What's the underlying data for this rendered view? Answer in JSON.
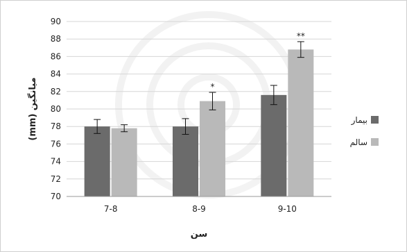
{
  "chart_data": {
    "type": "bar",
    "categories": [
      "7-8",
      "8-9",
      "9-10"
    ],
    "series": [
      {
        "name": "بیمار",
        "color": "#6b6b6b",
        "values": [
          78.0,
          78.0,
          81.6
        ],
        "errors": [
          0.8,
          0.9,
          1.1
        ]
      },
      {
        "name": "سالم",
        "color": "#b9b9b9",
        "values": [
          77.8,
          80.9,
          86.8
        ],
        "errors": [
          0.4,
          1.0,
          0.9
        ]
      }
    ],
    "significance": [
      "",
      "*",
      "**"
    ],
    "ylabel": "(mm) میانگین",
    "xlabel": "سن",
    "ylim": [
      70,
      90
    ],
    "yticks": [
      70,
      72,
      74,
      76,
      78,
      80,
      82,
      84,
      86,
      88,
      90
    ],
    "grid": true,
    "legend_position": "right"
  }
}
